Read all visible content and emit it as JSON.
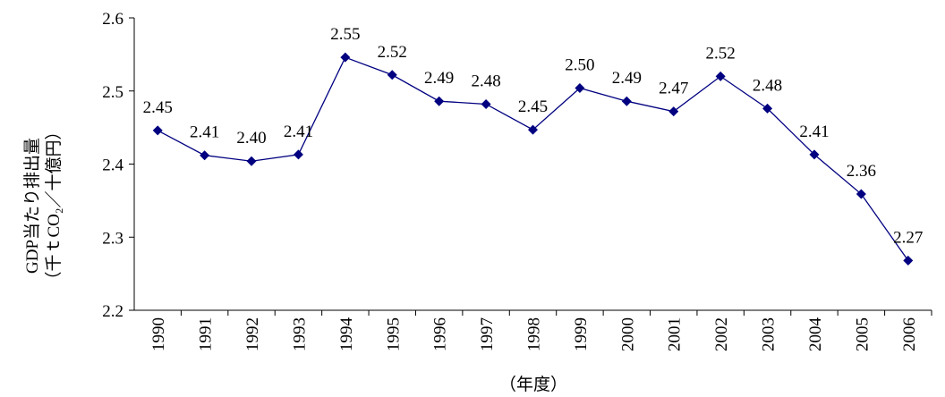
{
  "chart_data": {
    "type": "line",
    "y_label": [
      "GDP当たり排出量",
      "（千ｔCO₂／十億円）"
    ],
    "x_label": "（年度）",
    "categories": [
      "1990",
      "1991",
      "1992",
      "1993",
      "1994",
      "1995",
      "1996",
      "1997",
      "1998",
      "1999",
      "2000",
      "2001",
      "2002",
      "2003",
      "2004",
      "2005",
      "2006"
    ],
    "series": [
      {
        "color": "#000080",
        "values": [
          2.446,
          2.412,
          2.404,
          2.413,
          2.546,
          2.522,
          2.486,
          2.482,
          2.447,
          2.504,
          2.486,
          2.472,
          2.52,
          2.476,
          2.413,
          2.359,
          2.268
        ],
        "value_labels": [
          "2.45",
          "2.41",
          "2.40",
          "2.41",
          "2.55",
          "2.52",
          "2.49",
          "2.48",
          "2.45",
          "2.50",
          "2.49",
          "2.47",
          "2.52",
          "2.48",
          "2.41",
          "2.36",
          "2.27"
        ]
      }
    ],
    "ylim": [
      2.2,
      2.6
    ],
    "yticks": [
      2.2,
      2.3,
      2.4,
      2.5,
      2.6
    ]
  }
}
